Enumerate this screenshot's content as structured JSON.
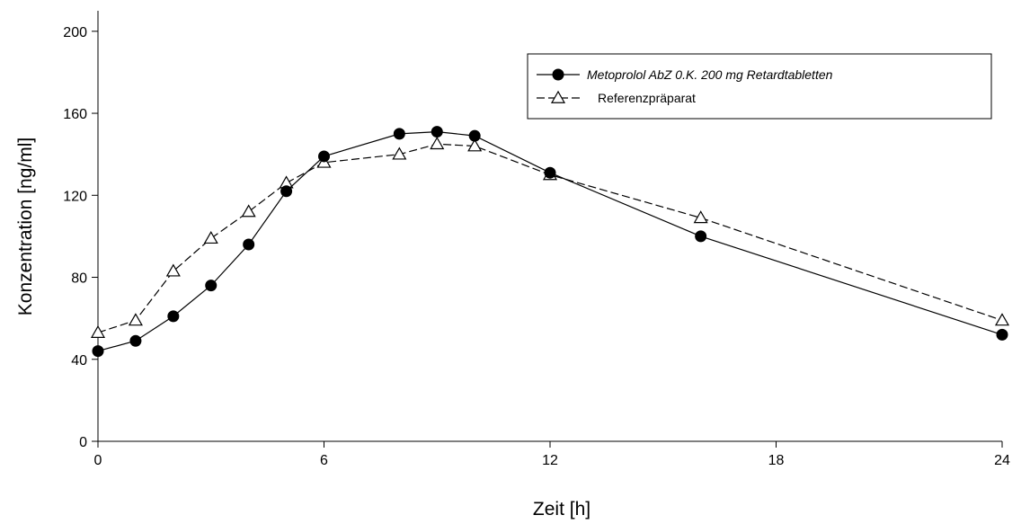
{
  "chart_data": {
    "type": "line",
    "xlabel": "Zeit [h]",
    "ylabel": "Konzentration [ng/ml]",
    "xlim": [
      0,
      24
    ],
    "ylim": [
      0,
      210
    ],
    "x_ticks": [
      0,
      6,
      12,
      18,
      24
    ],
    "y_ticks": [
      0,
      40,
      80,
      120,
      160,
      200
    ],
    "grid": false,
    "legend_position": "top-right",
    "series": [
      {
        "name": "Metoprolol AbZ 0.K. 200 mg Retardtabletten",
        "marker": "filled-circle",
        "line_style": "solid",
        "color": "#000000",
        "x": [
          0,
          1,
          2,
          3,
          4,
          5,
          6,
          8,
          9,
          10,
          12,
          16,
          24
        ],
        "y": [
          44,
          49,
          61,
          76,
          96,
          122,
          139,
          150,
          151,
          149,
          131,
          100,
          52
        ]
      },
      {
        "name": "Referenzpräparat",
        "marker": "open-triangle",
        "line_style": "dashed",
        "color": "#000000",
        "x": [
          0,
          1,
          2,
          3,
          4,
          5,
          6,
          8,
          9,
          10,
          12,
          16,
          24
        ],
        "y": [
          53,
          59,
          83,
          99,
          112,
          126,
          136,
          140,
          145,
          144,
          130,
          109,
          59
        ]
      }
    ]
  }
}
